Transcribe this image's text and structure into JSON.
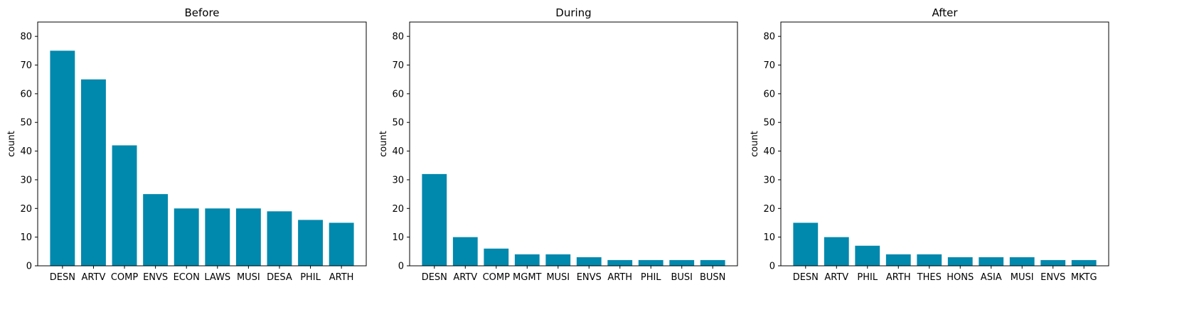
{
  "bar_color": "#0088ad",
  "chart_data": [
    {
      "type": "bar",
      "title": "Before",
      "ylabel": "count",
      "ylim": [
        0,
        85
      ],
      "yticks": [
        0,
        10,
        20,
        30,
        40,
        50,
        60,
        70,
        80
      ],
      "categories": [
        "DESN",
        "ARTV",
        "COMP",
        "ENVS",
        "ECON",
        "LAWS",
        "MUSI",
        "DESA",
        "PHIL",
        "ARTH"
      ],
      "values": [
        75,
        65,
        42,
        25,
        20,
        20,
        20,
        19,
        16,
        15
      ]
    },
    {
      "type": "bar",
      "title": "During",
      "ylabel": "count",
      "ylim": [
        0,
        85
      ],
      "yticks": [
        0,
        10,
        20,
        30,
        40,
        50,
        60,
        70,
        80
      ],
      "categories": [
        "DESN",
        "ARTV",
        "COMP",
        "MGMT",
        "MUSI",
        "ENVS",
        "ARTH",
        "PHIL",
        "BUSI",
        "BUSN"
      ],
      "values": [
        32,
        10,
        6,
        4,
        4,
        3,
        2,
        2,
        2,
        2
      ]
    },
    {
      "type": "bar",
      "title": "After",
      "ylabel": "count",
      "ylim": [
        0,
        85
      ],
      "yticks": [
        0,
        10,
        20,
        30,
        40,
        50,
        60,
        70,
        80
      ],
      "categories": [
        "DESN",
        "ARTV",
        "PHIL",
        "ARTH",
        "THES",
        "HONS",
        "ASIA",
        "MUSI",
        "ENVS",
        "MKTG"
      ],
      "values": [
        15,
        10,
        7,
        4,
        4,
        3,
        3,
        3,
        2,
        2
      ]
    }
  ]
}
